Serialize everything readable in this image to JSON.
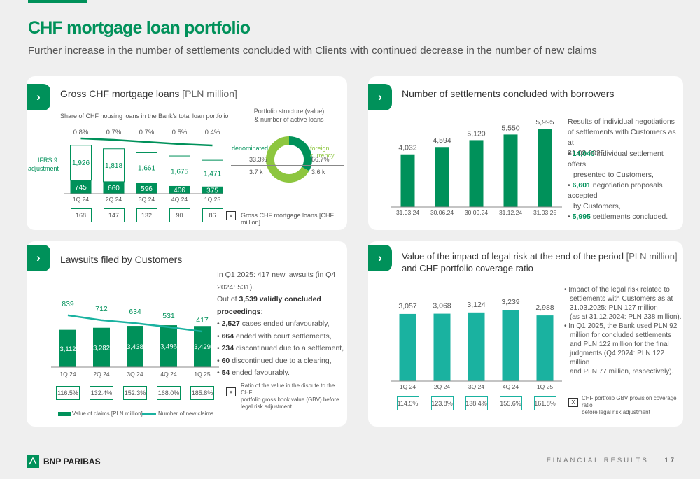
{
  "header": {
    "title": "CHF mortgage loan portfolio",
    "subtitle": "Further increase in the number of settlements concluded with Clients with continued decrease in the number of new claims"
  },
  "colors": {
    "green": "#00915a",
    "lime": "#8dc63f",
    "teal": "#1ab2a0",
    "text": "#333333"
  },
  "panel_gross": {
    "title": "Gross CHF mortgage loans",
    "unit": "[PLN million]",
    "share_label": "Share of CHF housing loans in the Bank's total loan portfolio",
    "ifrs_label": "IFRS 9 adjustment",
    "boxes_label": "Gross CHF mortgage loans [CHF million]",
    "box_marker": "x"
  },
  "panel_structure": {
    "title_line1": "Portfolio structure (value)",
    "title_line2": "& number of active loans",
    "denominated": {
      "label": "denominated",
      "pct": "33.3%",
      "count": "3.7 k"
    },
    "foreign": {
      "label": "foreign currency",
      "pct": "66.7%",
      "count": "3.6 k"
    }
  },
  "panel_settlements": {
    "title": "Number of settlements concluded with borrowers",
    "note_lines": [
      "Results of individual negotiations",
      "of settlements with Customers as at",
      "31.03.2025:"
    ],
    "bullets": [
      {
        "bold": "14,040",
        "line1": " individual settlement offers",
        "line2": "presented to Customers,"
      },
      {
        "bold": "6,601",
        "line1": " negotiation proposals accepted",
        "line2": "by Customers,"
      },
      {
        "bold": "5,995",
        "line1": " settlements concluded.",
        "line2": ""
      }
    ]
  },
  "panel_lawsuits": {
    "title": "Lawsuits filed by Customers",
    "intro": "In Q1 2025: 417 new lawsuits (in Q4 2024: 531).",
    "out_of_prefix": "Out of ",
    "out_of_bold": "3,539 validly concluded proceedings",
    "out_of_suffix": ":",
    "bullets": [
      {
        "bold": "2,527",
        "text": " cases ended unfavourably,"
      },
      {
        "bold": "664",
        "text": " ended with court settlements,"
      },
      {
        "bold": "234",
        "text": " discontinued due to a settlement,"
      },
      {
        "bold": "60",
        "text": " discontinued due to a clearing,"
      },
      {
        "bold": "54",
        "text": " ended favourably."
      }
    ],
    "ratio_label": "Ratio of the value in the dispute to the CHF portfolio gross book value (GBV) before legal risk adjustment",
    "ratio_lines": [
      "Ratio of the value in the dispute to the CHF",
      "portfolio gross book value (GBV) before",
      "legal risk adjustment"
    ],
    "box_marker": "x",
    "legend_bar": "Value of claims [PLN million]",
    "legend_line": "Number of new claims"
  },
  "panel_legal": {
    "title_line1": "Value of the impact of legal risk at the end of the period",
    "unit": "[PLN million]",
    "title_line2": "and CHF portfolio coverage ratio",
    "bullets": [
      [
        "Impact of the legal risk related to",
        "settlements with Customers as at",
        "31.03.2025: PLN 127 million",
        "(as at 31.12.2024: PLN 238 million)."
      ],
      [
        "In Q1 2025, the Bank used PLN 92",
        "million for concluded settlements",
        "and PLN 122 million for the final",
        "judgments (Q4 2024: PLN 122 million",
        "and PLN 77 million, respectively)."
      ]
    ],
    "coverage_lines": [
      "CHF portfolio GBV provision coverage ratio",
      "before legal risk adjustment"
    ],
    "box_marker": "X"
  },
  "footer": {
    "brand": "BNP PARIBAS",
    "section": "FINANCIAL RESULTS",
    "page": "17"
  },
  "chart_data": [
    {
      "id": "gross_chf_loans",
      "type": "bar",
      "categories": [
        "1Q 24",
        "2Q 24",
        "3Q 24",
        "4Q 24",
        "1Q 25"
      ],
      "series": [
        {
          "name": "",
          "values": [
            745,
            660,
            596,
            406,
            375
          ]
        },
        {
          "name": "IFRS 9 adjustment",
          "values": [
            1926,
            1818,
            1661,
            1675,
            1471
          ]
        }
      ],
      "share_line": [
        "0.8%",
        "0.7%",
        "0.7%",
        "0.5%",
        "0.4%"
      ],
      "chf_million_boxes": [
        "168",
        "147",
        "132",
        "90",
        "86"
      ]
    },
    {
      "id": "portfolio_structure",
      "type": "pie",
      "labels": [
        "denominated",
        "foreign currency"
      ],
      "values": [
        33.3,
        66.7
      ]
    },
    {
      "id": "settlements",
      "type": "bar",
      "categories": [
        "31.03.24",
        "30.06.24",
        "30.09.24",
        "31.12.24",
        "31.03.25"
      ],
      "values": [
        4032,
        4594,
        5120,
        5550,
        5995
      ],
      "value_labels": [
        "4,032",
        "4,594",
        "5,120",
        "5,550",
        "5,995"
      ]
    },
    {
      "id": "lawsuits",
      "type": "bar",
      "categories": [
        "1Q 24",
        "2Q 24",
        "3Q 24",
        "4Q 24",
        "1Q 25"
      ],
      "series": [
        {
          "name": "Value of claims [PLN million]",
          "values": [
            3112,
            3282,
            3438,
            3496,
            3429
          ],
          "labels": [
            "3,112",
            "3,282",
            "3,438",
            "3,496",
            "3,429"
          ]
        },
        {
          "name": "Number of new claims",
          "values": [
            839,
            712,
            634,
            531,
            417
          ]
        }
      ],
      "ratio_boxes": [
        "116.5%",
        "132.4%",
        "152.3%",
        "168.0%",
        "185.8%"
      ]
    },
    {
      "id": "legal_risk",
      "type": "bar",
      "categories": [
        "1Q 24",
        "2Q 24",
        "3Q 24",
        "4Q 24",
        "1Q 25"
      ],
      "values": [
        3057,
        3068,
        3124,
        3239,
        2988
      ],
      "value_labels": [
        "3,057",
        "3,068",
        "3,124",
        "3,239",
        "2,988"
      ],
      "coverage_boxes": [
        "114.5%",
        "123.8%",
        "138.4%",
        "155.6%",
        "161.8%"
      ]
    }
  ]
}
